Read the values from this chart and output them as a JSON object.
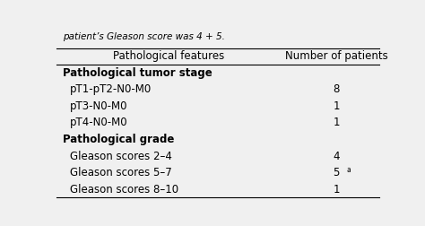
{
  "header": [
    "Pathological features",
    "Number of patients"
  ],
  "rows": [
    {
      "label": "Pathological tumor stage",
      "value": "",
      "bold": true,
      "indent": false
    },
    {
      "label": "pT1-pT2-N0-M0",
      "value": "8",
      "bold": false,
      "indent": true
    },
    {
      "label": "pT3-N0-M0",
      "value": "1",
      "bold": false,
      "indent": true
    },
    {
      "label": "pT4-N0-M0",
      "value": "1",
      "bold": false,
      "indent": true
    },
    {
      "label": "Pathological grade",
      "value": "",
      "bold": true,
      "indent": false
    },
    {
      "label": "Gleason scores 2–4",
      "value": "4",
      "bold": false,
      "indent": true
    },
    {
      "label": "Gleason scores 5–7",
      "value": "5",
      "superscript": "a",
      "bold": false,
      "indent": true
    },
    {
      "label": "Gleason scores 8–10",
      "value": "1",
      "bold": false,
      "indent": true
    }
  ],
  "top_text": "patient’s Gleason score was 4 + 5.",
  "bg_color": "#f0f0f0",
  "text_color": "#000000",
  "header_fontsize": 8.5,
  "row_fontsize": 8.5
}
